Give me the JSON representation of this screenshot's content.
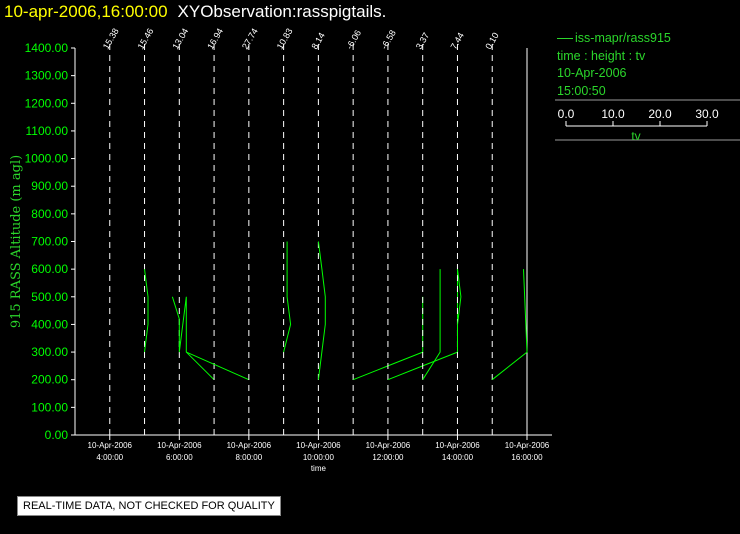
{
  "header": {
    "date_text": "10-apr-2006,16:00:00",
    "observation_text": "XYObservation:rasspigtails."
  },
  "legend": {
    "series_label": "iss-mapr/rass915",
    "variables": "time : height : tv",
    "date": "10-Apr-2006",
    "time": "15:00:50",
    "colorbar_ticks": [
      "0.0",
      "10.0",
      "20.0",
      "30.0"
    ],
    "colorbar_label": "tv"
  },
  "footer": {
    "note": "REAL-TIME DATA, NOT CHECKED FOR QUALITY"
  },
  "colors": {
    "series": "#00ff00",
    "axis": "#ffffff",
    "ylabel": "#2bd62b",
    "title_date": "#ffff00"
  },
  "chart_data": {
    "type": "line",
    "ylabel": "915 RASS Altitude (m agl)",
    "xlabel": "time",
    "ylim": [
      0,
      1400
    ],
    "yticks": [
      "0.00",
      "100.00",
      "200.00",
      "300.00",
      "400.00",
      "500.00",
      "600.00",
      "700.00",
      "800.00",
      "900.00",
      "1000.00",
      "1100.00",
      "1200.00",
      "1300.00",
      "1400.00"
    ],
    "xlim_hours": [
      3.0,
      16.0
    ],
    "xticks": [
      {
        "hour": 4,
        "date": "10-Apr-2006",
        "time": "4:00:00"
      },
      {
        "hour": 6,
        "date": "10-Apr-2006",
        "time": "6:00:00"
      },
      {
        "hour": 8,
        "date": "10-Apr-2006",
        "time": "8:00:00"
      },
      {
        "hour": 10,
        "date": "10-Apr-2006",
        "time": "10:00:00"
      },
      {
        "hour": 12,
        "date": "10-Apr-2006",
        "time": "12:00:00"
      },
      {
        "hour": 14,
        "date": "10-Apr-2006",
        "time": "14:00:00"
      },
      {
        "hour": 16,
        "date": "10-Apr-2006",
        "time": "16:00:00"
      }
    ],
    "profiles": [
      {
        "hour": 4.0,
        "ref": "15.38",
        "points": []
      },
      {
        "hour": 5.0,
        "ref": "15.46",
        "points": [
          [
            5.0,
            300
          ],
          [
            5.1,
            400
          ],
          [
            5.1,
            500
          ],
          [
            5.0,
            600
          ]
        ]
      },
      {
        "hour": 6.0,
        "ref": "13.04",
        "points": [
          [
            5.8,
            500
          ],
          [
            6.0,
            420
          ],
          [
            6.0,
            300
          ],
          [
            6.2,
            500
          ],
          [
            6.2,
            300
          ],
          [
            7.0,
            200
          ]
        ]
      },
      {
        "hour": 7.0,
        "ref": "16.94",
        "points": [
          [
            6.2,
            300
          ],
          [
            8.0,
            200
          ]
        ]
      },
      {
        "hour": 8.0,
        "ref": "27.74",
        "points": []
      },
      {
        "hour": 9.0,
        "ref": "10.83",
        "points": [
          [
            9.0,
            300
          ],
          [
            9.2,
            400
          ],
          [
            9.1,
            500
          ],
          [
            9.1,
            700
          ]
        ]
      },
      {
        "hour": 10.0,
        "ref": "8.14",
        "points": [
          [
            10.0,
            700
          ],
          [
            10.1,
            600
          ],
          [
            10.2,
            500
          ],
          [
            10.2,
            400
          ],
          [
            10.0,
            200
          ]
        ]
      },
      {
        "hour": 11.0,
        "ref": "-6.06",
        "points": [
          [
            11.0,
            200
          ],
          [
            12.0,
            250
          ],
          [
            13.0,
            300
          ],
          [
            13.0,
            500
          ]
        ]
      },
      {
        "hour": 12.0,
        "ref": "-6.58",
        "points": [
          [
            12.0,
            200
          ],
          [
            13.0,
            250
          ],
          [
            14.0,
            300
          ],
          [
            14.0,
            600
          ]
        ]
      },
      {
        "hour": 13.0,
        "ref": "3.37",
        "points": [
          [
            13.0,
            200
          ],
          [
            13.5,
            300
          ],
          [
            13.5,
            600
          ]
        ]
      },
      {
        "hour": 14.0,
        "ref": "7.44",
        "points": [
          [
            14.0,
            300
          ],
          [
            14.0,
            400
          ],
          [
            14.1,
            500
          ],
          [
            14.0,
            600
          ]
        ]
      },
      {
        "hour": 15.0,
        "ref": "0.10",
        "points": [
          [
            15.0,
            200
          ],
          [
            16.0,
            300
          ],
          [
            15.9,
            600
          ]
        ]
      }
    ]
  }
}
